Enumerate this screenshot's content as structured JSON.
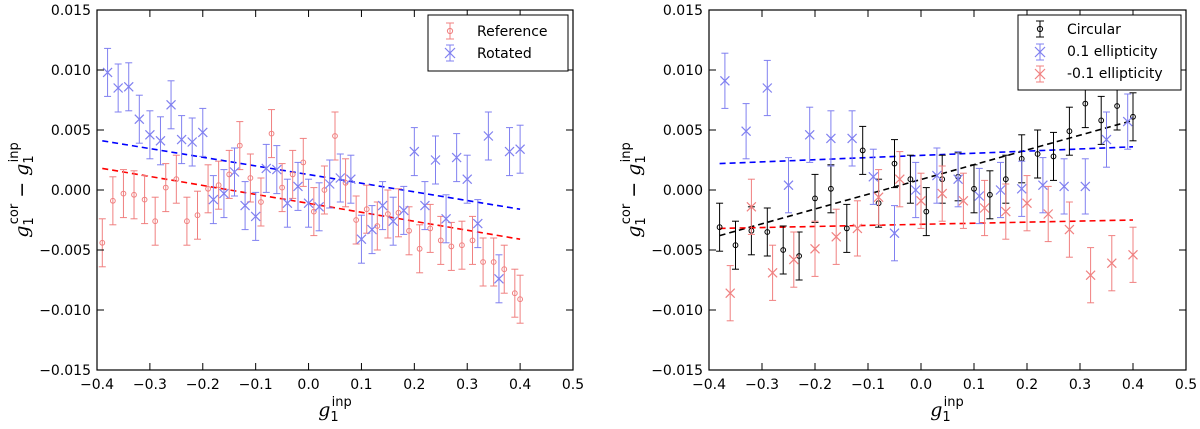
{
  "chart_data": [
    {
      "type": "scatter",
      "panel": "left",
      "xlabel": "g_1^inp",
      "ylabel": "g_1^cor - g_1^inp",
      "xlim": [
        -0.4,
        0.5
      ],
      "ylim": [
        -0.015,
        0.015
      ],
      "xticks": [
        "−0.4",
        "−0.3",
        "−0.2",
        "−0.1",
        "0.0",
        "0.1",
        "0.2",
        "0.3",
        "0.4",
        "0.5"
      ],
      "yticks": [
        "0.015",
        "0.010",
        "0.005",
        "0.000",
        "−0.005",
        "−0.010",
        "−0.015"
      ],
      "legend_position": "top-right",
      "series": [
        {
          "name": "Reference",
          "marker": "circle",
          "color": "#f08080",
          "x": [
            -0.39,
            -0.37,
            -0.35,
            -0.33,
            -0.31,
            -0.29,
            -0.27,
            -0.25,
            -0.23,
            -0.21,
            -0.19,
            -0.17,
            -0.15,
            -0.13,
            -0.11,
            -0.09,
            -0.07,
            -0.05,
            -0.03,
            -0.01,
            0.01,
            0.03,
            0.05,
            0.07,
            0.09,
            0.11,
            0.13,
            0.15,
            0.17,
            0.19,
            0.21,
            0.23,
            0.25,
            0.27,
            0.29,
            0.31,
            0.33,
            0.35,
            0.37,
            0.39,
            0.4
          ],
          "y": [
            -0.0044,
            -0.0009,
            -0.0003,
            -0.0004,
            -0.0008,
            -0.0026,
            0.0002,
            0.0009,
            -0.0026,
            -0.0021,
            0.0001,
            0.0004,
            0.0013,
            0.0037,
            0.001,
            -0.001,
            0.0047,
            0.0002,
            0.0013,
            0.0023,
            -0.0018,
            0.0,
            0.0045,
            0.0006,
            -0.0025,
            -0.0016,
            -0.003,
            -0.002,
            -0.0019,
            -0.0034,
            -0.0049,
            -0.0032,
            -0.0042,
            -0.0047,
            -0.0046,
            -0.0042,
            -0.006,
            -0.006,
            -0.0066,
            -0.0086,
            -0.0091
          ],
          "err": [
            0.002,
            0.002,
            0.002,
            0.002,
            0.002,
            0.002,
            0.002,
            0.002,
            0.002,
            0.002,
            0.002,
            0.002,
            0.002,
            0.002,
            0.002,
            0.002,
            0.002,
            0.002,
            0.002,
            0.002,
            0.002,
            0.002,
            0.002,
            0.002,
            0.002,
            0.002,
            0.002,
            0.002,
            0.002,
            0.002,
            0.002,
            0.002,
            0.002,
            0.002,
            0.002,
            0.002,
            0.002,
            0.002,
            0.002,
            0.002,
            0.002
          ]
        },
        {
          "name": "Rotated",
          "marker": "x",
          "color": "#8080f0",
          "x": [
            -0.38,
            -0.36,
            -0.34,
            -0.32,
            -0.3,
            -0.28,
            -0.26,
            -0.24,
            -0.22,
            -0.2,
            -0.18,
            -0.16,
            -0.14,
            -0.12,
            -0.1,
            -0.08,
            -0.06,
            -0.04,
            -0.02,
            0.0,
            0.02,
            0.04,
            0.06,
            0.08,
            0.1,
            0.12,
            0.14,
            0.16,
            0.18,
            0.2,
            0.22,
            0.24,
            0.26,
            0.28,
            0.3,
            0.32,
            0.34,
            0.36,
            0.38,
            0.4
          ],
          "y": [
            0.0098,
            0.0085,
            0.0086,
            0.0059,
            0.0046,
            0.0041,
            0.0071,
            0.0042,
            0.004,
            0.0048,
            -0.0008,
            -0.0003,
            0.0015,
            -0.0013,
            -0.0022,
            0.0018,
            0.0017,
            -0.0011,
            0.0003,
            -0.0011,
            -0.0014,
            0.0005,
            0.001,
            0.0009,
            -0.0041,
            -0.0033,
            -0.0013,
            -0.0026,
            -0.0017,
            0.0032,
            -0.0013,
            0.0025,
            -0.0024,
            0.0027,
            0.0009,
            -0.0028,
            0.0045,
            -0.0074,
            0.0032,
            0.0034
          ],
          "err": [
            0.002,
            0.002,
            0.002,
            0.002,
            0.002,
            0.002,
            0.002,
            0.002,
            0.002,
            0.002,
            0.002,
            0.002,
            0.002,
            0.002,
            0.002,
            0.002,
            0.002,
            0.002,
            0.002,
            0.002,
            0.002,
            0.002,
            0.002,
            0.002,
            0.002,
            0.002,
            0.002,
            0.002,
            0.002,
            0.002,
            0.002,
            0.002,
            0.002,
            0.002,
            0.002,
            0.002,
            0.002,
            0.002,
            0.002,
            0.002
          ]
        }
      ],
      "fits": [
        {
          "name": "Reference fit",
          "color": "#ff0000",
          "x": [
            -0.39,
            0.4
          ],
          "y": [
            0.0018,
            -0.0041
          ]
        },
        {
          "name": "Rotated fit",
          "color": "#0000ff",
          "x": [
            -0.39,
            0.4
          ],
          "y": [
            0.0041,
            -0.0016
          ]
        }
      ]
    },
    {
      "type": "scatter",
      "panel": "right",
      "xlabel": "g_1^inp",
      "ylabel": "g_1^cor - g_1^inp",
      "xlim": [
        -0.4,
        0.5
      ],
      "ylim": [
        -0.015,
        0.015
      ],
      "xticks": [
        "−0.4",
        "−0.3",
        "−0.2",
        "−0.1",
        "0.0",
        "0.1",
        "0.2",
        "0.3",
        "0.4",
        "0.5"
      ],
      "yticks": [
        "0.015",
        "0.010",
        "0.005",
        "0.000",
        "−0.005",
        "−0.010",
        "−0.015"
      ],
      "legend_position": "top-right",
      "series": [
        {
          "name": "Circular",
          "marker": "circle",
          "color": "#000000",
          "x": [
            -0.38,
            -0.35,
            -0.32,
            -0.29,
            -0.26,
            -0.23,
            -0.2,
            -0.17,
            -0.14,
            -0.11,
            -0.08,
            -0.05,
            -0.02,
            0.01,
            0.04,
            0.07,
            0.1,
            0.13,
            0.16,
            0.19,
            0.22,
            0.25,
            0.28,
            0.31,
            0.34,
            0.37,
            0.4
          ],
          "y": [
            -0.0031,
            -0.0046,
            -0.0034,
            -0.0035,
            -0.005,
            -0.0055,
            -0.0007,
            0.0001,
            -0.0032,
            0.0033,
            -0.0011,
            0.0022,
            0.0009,
            -0.0018,
            0.0009,
            0.0011,
            0.0001,
            -0.0004,
            0.0009,
            0.0026,
            0.003,
            0.0028,
            0.0049,
            0.0072,
            0.0058,
            0.007,
            0.0061
          ],
          "err": [
            0.002,
            0.002,
            0.002,
            0.002,
            0.002,
            0.002,
            0.002,
            0.002,
            0.002,
            0.002,
            0.002,
            0.002,
            0.002,
            0.002,
            0.002,
            0.002,
            0.002,
            0.002,
            0.002,
            0.002,
            0.002,
            0.002,
            0.002,
            0.002,
            0.002,
            0.002,
            0.002
          ]
        },
        {
          "name": "0.1 ellipticity",
          "marker": "x",
          "color": "#8080f0",
          "x": [
            -0.37,
            -0.33,
            -0.29,
            -0.25,
            -0.21,
            -0.17,
            -0.13,
            -0.09,
            -0.05,
            -0.01,
            0.03,
            0.07,
            0.11,
            0.15,
            0.19,
            0.23,
            0.27,
            0.31,
            0.35,
            0.39
          ],
          "y": [
            0.0091,
            0.0049,
            0.0085,
            0.0004,
            0.0046,
            0.0043,
            0.0043,
            0.0011,
            -0.0036,
            0.0,
            0.0012,
            0.0009,
            -0.0005,
            0.0,
            0.0001,
            0.0004,
            0.0003,
            0.0003,
            0.0042,
            0.0057
          ],
          "err": [
            0.0023,
            0.0023,
            0.0023,
            0.0023,
            0.0023,
            0.0023,
            0.0023,
            0.0023,
            0.0023,
            0.0023,
            0.0023,
            0.0023,
            0.0023,
            0.0023,
            0.0023,
            0.0023,
            0.0023,
            0.0023,
            0.0023,
            0.0023
          ]
        },
        {
          "name": "-0.1 ellipticity",
          "marker": "x",
          "color": "#f08080",
          "x": [
            -0.36,
            -0.32,
            -0.28,
            -0.24,
            -0.2,
            -0.16,
            -0.12,
            -0.08,
            -0.04,
            0.0,
            0.04,
            0.08,
            0.12,
            0.16,
            0.2,
            0.24,
            0.28,
            0.32,
            0.36,
            0.4
          ],
          "y": [
            -0.0086,
            -0.0014,
            -0.0069,
            -0.0058,
            -0.0049,
            -0.0039,
            -0.0032,
            -0.0006,
            0.0009,
            -0.0009,
            -0.0003,
            -0.0009,
            -0.0015,
            -0.0018,
            -0.0011,
            -0.002,
            -0.0033,
            -0.0071,
            -0.0061,
            -0.0054
          ],
          "err": [
            0.0023,
            0.0023,
            0.0023,
            0.0023,
            0.0023,
            0.0023,
            0.0023,
            0.0023,
            0.0023,
            0.0023,
            0.0023,
            0.0023,
            0.0023,
            0.0023,
            0.0023,
            0.0023,
            0.0023,
            0.0023,
            0.0023,
            0.0023
          ]
        }
      ],
      "fits": [
        {
          "name": "Circular fit",
          "color": "#000000",
          "x": [
            -0.38,
            0.4
          ],
          "y": [
            -0.0038,
            0.0058
          ]
        },
        {
          "name": "0.1 ellipticity fit",
          "color": "#0000ff",
          "x": [
            -0.38,
            0.4
          ],
          "y": [
            0.0022,
            0.0036
          ]
        },
        {
          "name": "-0.1 ellipticity fit",
          "color": "#ff0000",
          "x": [
            -0.38,
            0.4
          ],
          "y": [
            -0.0032,
            -0.0025
          ]
        }
      ]
    }
  ]
}
